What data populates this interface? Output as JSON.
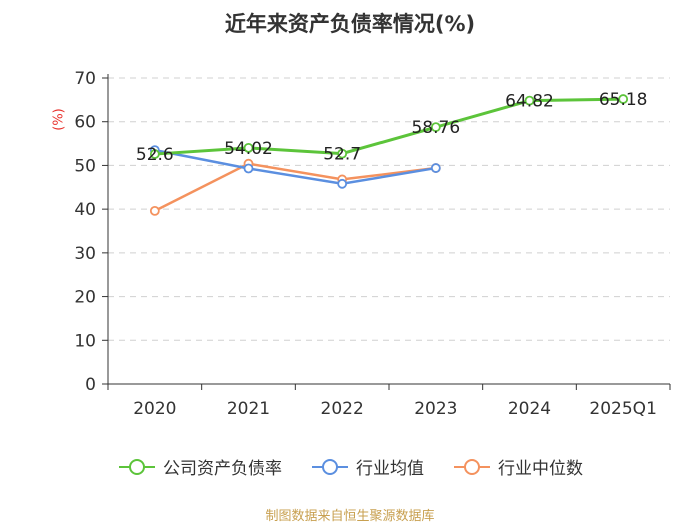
{
  "chart_data": {
    "type": "line",
    "title": "近年来资产负债率情况(%)",
    "ylabel": "(%)",
    "categories": [
      "2020",
      "2021",
      "2022",
      "2023",
      "2024",
      "2025Q1"
    ],
    "ylim": [
      0,
      70
    ],
    "yticks": [
      0,
      10,
      20,
      30,
      40,
      50,
      60,
      70
    ],
    "grid": true,
    "legend_position": "bottom",
    "series": [
      {
        "name": "公司资产负债率",
        "color": "#5cc43a",
        "values": [
          52.6,
          54.02,
          52.7,
          58.76,
          64.82,
          65.18
        ],
        "labels": [
          "52.6",
          "54.02",
          "52.7",
          "58.76",
          "64.82",
          "65.18"
        ]
      },
      {
        "name": "行业均值",
        "color": "#5b8fe0",
        "values": [
          53.5,
          49.3,
          45.8,
          49.4,
          null,
          null
        ]
      },
      {
        "name": "行业中位数",
        "color": "#f4925e",
        "values": [
          39.6,
          50.4,
          46.8,
          49.4,
          null,
          null
        ]
      }
    ]
  },
  "legend": {
    "items": [
      "公司资产负债率",
      "行业均值",
      "行业中位数"
    ]
  },
  "footer": {
    "source": "制图数据来自恒生聚源数据库"
  }
}
